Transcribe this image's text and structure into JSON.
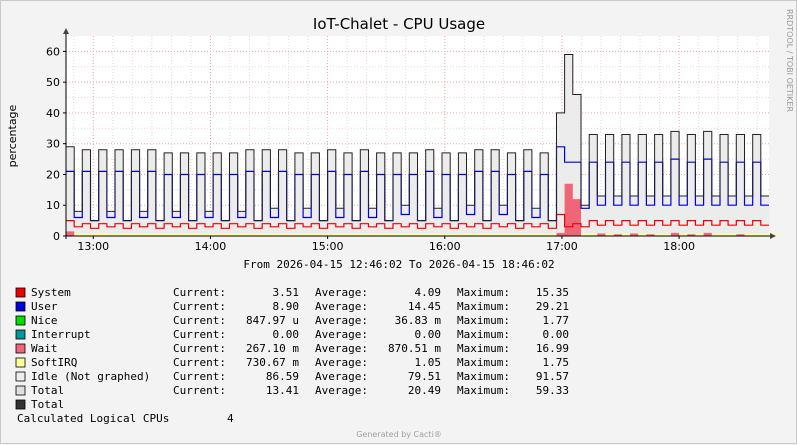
{
  "chart_data": {
    "type": "area",
    "title": "IoT-Chalet - CPU Usage",
    "ylabel": "percentage",
    "ylim": [
      0,
      65
    ],
    "yticks": [
      "0",
      "10",
      "20",
      "30",
      "40",
      "50",
      "60"
    ],
    "xlim": [
      "12:46:02",
      "18:46:02"
    ],
    "xticks": [
      "13:00",
      "14:00",
      "15:00",
      "16:00",
      "17:00",
      "18:00"
    ],
    "date_range": "From 2026-04-15 12:46:02 To 2026-04-15 18:46:02",
    "watermark": "RRDTOOL / TOBI OETIKER",
    "generated_by": "Generated by Cacti®",
    "grid": true,
    "series": [
      {
        "name": "System",
        "color": "#ee0000",
        "style": "line"
      },
      {
        "name": "User",
        "color": "#0000dd",
        "style": "line"
      },
      {
        "name": "Nice",
        "color": "#00dd00",
        "style": "line"
      },
      {
        "name": "Interrupt",
        "color": "#009999",
        "style": "line"
      },
      {
        "name": "Wait",
        "color": "#ee6677",
        "style": "area"
      },
      {
        "name": "SoftIRQ",
        "color": "#ffff99",
        "style": "area"
      },
      {
        "name": "Total",
        "color": "#e8e8e8",
        "style": "area"
      },
      {
        "name": "Total",
        "color": "#222222",
        "style": "line"
      }
    ],
    "total_series": [
      29,
      8,
      28,
      5,
      28,
      8,
      28,
      5,
      28,
      8,
      28,
      5,
      27,
      8,
      27,
      5,
      27,
      8,
      27,
      5,
      27,
      8,
      28,
      5,
      28,
      9,
      28,
      5,
      27,
      9,
      27,
      5,
      28,
      9,
      27,
      5,
      28,
      9,
      27,
      5,
      27,
      10,
      27,
      5,
      28,
      9,
      27,
      5,
      27,
      10,
      28,
      5,
      28,
      10,
      27,
      5,
      28,
      9,
      27,
      5,
      40,
      59,
      46,
      10,
      33,
      13,
      33,
      13,
      33,
      13,
      33,
      13,
      33,
      13,
      34,
      13,
      33,
      13,
      34,
      13,
      33,
      13,
      33,
      13,
      33,
      13
    ],
    "user_series": [
      21,
      6,
      21,
      5,
      21,
      6,
      21,
      5,
      21,
      6,
      21,
      5,
      20,
      6,
      20,
      5,
      20,
      6,
      20,
      5,
      20,
      6,
      21,
      5,
      21,
      6,
      21,
      5,
      20,
      6,
      20,
      5,
      21,
      6,
      20,
      5,
      21,
      6,
      20,
      5,
      20,
      7,
      20,
      5,
      21,
      6,
      20,
      5,
      20,
      7,
      21,
      5,
      21,
      7,
      20,
      5,
      21,
      6,
      20,
      5,
      29,
      24,
      24,
      9,
      24,
      10,
      24,
      10,
      24,
      10,
      24,
      10,
      24,
      10,
      25,
      10,
      24,
      10,
      25,
      10,
      24,
      10,
      24,
      10,
      24,
      10
    ],
    "system_series": [
      5,
      3,
      4,
      2.5,
      4,
      3,
      4,
      2.5,
      4,
      3,
      4,
      2.5,
      4,
      3,
      4,
      2.5,
      4,
      3,
      4,
      2.5,
      4,
      3,
      4,
      2.5,
      4,
      3,
      4,
      2.5,
      4,
      3,
      4,
      2.5,
      4,
      3,
      4,
      2.5,
      4,
      3,
      4,
      2.5,
      4,
      3,
      4,
      2.5,
      4,
      3,
      4,
      2.5,
      4,
      3,
      4,
      2.5,
      4,
      3,
      4,
      2.5,
      4,
      3,
      4,
      2.5,
      7,
      3,
      4,
      3,
      5,
      3.5,
      5,
      3.5,
      5,
      3.5,
      5,
      3.5,
      5,
      3.5,
      5,
      3.5,
      5,
      3.5,
      5,
      3.5,
      5,
      3.5,
      5,
      3.5,
      5,
      3.5
    ],
    "wait_series": [
      1.5,
      0,
      0,
      0,
      0,
      0,
      0,
      0,
      0,
      0,
      0,
      0,
      0,
      0,
      0,
      0,
      0,
      0,
      0,
      0,
      0,
      0,
      0,
      0,
      0,
      0,
      0,
      0,
      0,
      0,
      0,
      0,
      0,
      0,
      0,
      0,
      0,
      0,
      0,
      0,
      0,
      0,
      0,
      0,
      0,
      0,
      0,
      0,
      0,
      0,
      0,
      0,
      0,
      0,
      0,
      0,
      0,
      0,
      0,
      0,
      1,
      17,
      12,
      0,
      0,
      0.8,
      0,
      0.6,
      0,
      0.8,
      0,
      0.6,
      0,
      0,
      1,
      0,
      0.6,
      0,
      1,
      0,
      0,
      0,
      0.6,
      0,
      0,
      0,
      0,
      0
    ],
    "softirq_series": [
      1,
      0.7,
      0.7,
      0.7,
      1,
      0.7,
      0.7,
      0.7,
      0.7,
      0.7,
      0.7,
      0.7,
      0.7,
      0.7,
      0.7,
      0.7,
      0.7,
      0.7,
      0.7,
      0.7,
      0.7,
      0.7,
      0.7,
      0.7,
      0.7,
      0.7,
      0.7,
      0.7,
      0.7,
      0.7,
      0.7,
      0.7,
      0.7,
      0.7,
      0.7,
      0.7,
      0.7,
      0.7,
      0.7,
      0.7,
      0.7,
      0.7,
      0.7,
      0.7,
      0.7,
      0.7,
      0.7,
      0.7,
      0.7,
      0.7,
      0.7,
      0.7,
      0.7,
      0.7,
      0.7,
      0.7,
      0.7,
      0.7,
      0.7,
      0.7,
      1,
      1.5,
      1,
      0.7,
      0.8,
      0.7,
      0.8,
      0.7,
      0.8,
      0.7,
      0.8,
      0.7,
      0.8,
      0.7,
      0.8,
      0.7,
      0.8,
      0.7,
      0.8,
      0.7,
      0.8,
      0.7,
      0.8,
      0.7,
      0.8,
      0.7,
      0.8,
      0.7
    ],
    "legend": [
      {
        "name": "System",
        "color": "#ee0000",
        "current": "3.51",
        "average": "4.09",
        "maximum": "15.35"
      },
      {
        "name": "User",
        "color": "#0000dd",
        "current": "8.90",
        "average": "14.45",
        "maximum": "29.21"
      },
      {
        "name": "Nice",
        "color": "#00dd00",
        "current": "847.97 u",
        "average": "36.83 m",
        "maximum": "1.77"
      },
      {
        "name": "Interrupt",
        "color": "#009999",
        "current": "0.00",
        "average": "0.00",
        "maximum": "0.00"
      },
      {
        "name": "Wait",
        "color": "#ee6677",
        "current": "267.10 m",
        "average": "870.51 m",
        "maximum": "16.99"
      },
      {
        "name": "SoftIRQ",
        "color": "#ffff99",
        "current": "730.67 m",
        "average": "1.05",
        "maximum": "1.75"
      },
      {
        "name": "Idle (Not graphed)",
        "color": "#eeeeee",
        "current": "86.59",
        "average": "79.51",
        "maximum": "91.57"
      },
      {
        "name": "Total",
        "color": "#e0e0e0",
        "current": "13.41",
        "average": "20.49",
        "maximum": "59.33"
      },
      {
        "name": "Total",
        "color": "#333333"
      }
    ],
    "column_labels": {
      "current": "Current:",
      "average": "Average:",
      "maximum": "Maximum:"
    },
    "calculated": {
      "label": "Calculated Logical CPUs",
      "value": "4"
    }
  }
}
